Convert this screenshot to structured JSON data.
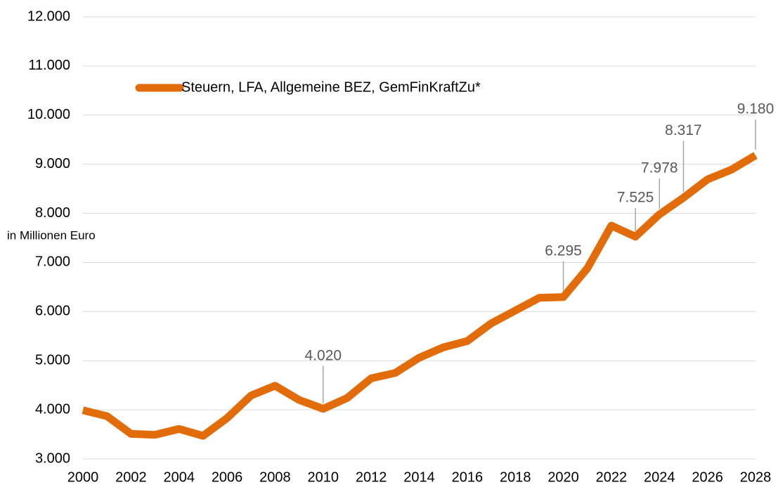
{
  "chart_data": {
    "type": "line",
    "y_label": "in Millionen Euro",
    "x": [
      2000,
      2001,
      2002,
      2003,
      2004,
      2005,
      2006,
      2007,
      2008,
      2009,
      2010,
      2011,
      2012,
      2013,
      2014,
      2015,
      2016,
      2017,
      2018,
      2019,
      2020,
      2021,
      2022,
      2023,
      2024,
      2025,
      2026,
      2027,
      2028
    ],
    "series": [
      {
        "name": "Steuern, LFA, Allgemeine BEZ, GemFinKraftZu*",
        "color": "#e36c0a",
        "values": [
          3990,
          3870,
          3510,
          3490,
          3610,
          3470,
          3830,
          4290,
          4490,
          4200,
          4020,
          4240,
          4640,
          4750,
          5060,
          5270,
          5400,
          5760,
          6020,
          6280,
          6295,
          6880,
          7750,
          7525,
          7978,
          8317,
          8690,
          8890,
          9180
        ],
        "value_labels": [
          null,
          null,
          null,
          null,
          null,
          null,
          null,
          null,
          null,
          null,
          "4.020",
          null,
          null,
          null,
          null,
          null,
          null,
          null,
          null,
          null,
          "6.295",
          null,
          null,
          "7.525",
          "7.978",
          "8.317",
          null,
          null,
          "9.180"
        ]
      }
    ],
    "xlim": [
      2000,
      2028
    ],
    "xticks": [
      2000,
      2002,
      2004,
      2006,
      2008,
      2010,
      2012,
      2014,
      2016,
      2018,
      2020,
      2022,
      2024,
      2026,
      2028
    ],
    "ylim": [
      3000,
      12000
    ],
    "yticks": [
      {
        "value": 3000,
        "label": "3.000"
      },
      {
        "value": 4000,
        "label": "4.000"
      },
      {
        "value": 5000,
        "label": "5.000"
      },
      {
        "value": 6000,
        "label": "6.000"
      },
      {
        "value": 7000,
        "label": "7.000"
      },
      {
        "value": 8000,
        "label": "8.000"
      },
      {
        "value": 9000,
        "label": "9.000"
      },
      {
        "value": 10000,
        "label": "10.000"
      },
      {
        "value": 11000,
        "label": "11.000"
      },
      {
        "value": 12000,
        "label": "12.000"
      }
    ],
    "grid": true
  }
}
